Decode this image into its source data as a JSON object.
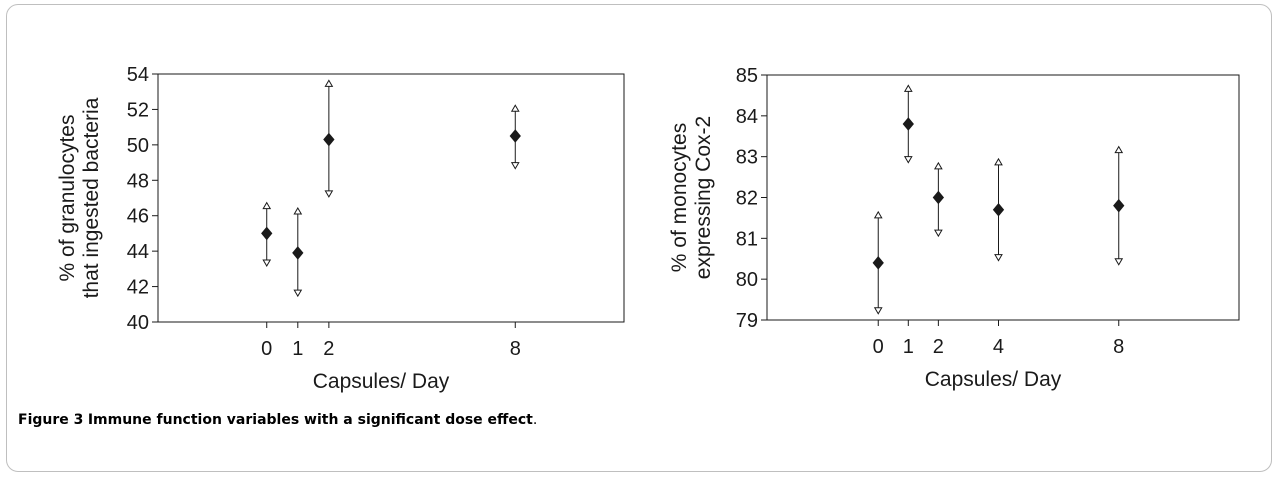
{
  "caption": {
    "label": "Figure 3",
    "text": "Immune function variables with a significant dose effect",
    "suffix": "."
  },
  "chart_data": [
    {
      "type": "scatter",
      "error_bars": true,
      "xlabel": "Capsules/ Day",
      "ylabel": [
        "% of granulocytes",
        "that ingested bacteria"
      ],
      "x": [
        0,
        1,
        2,
        8
      ],
      "xticks": [
        0,
        1,
        2,
        8
      ],
      "ylim": [
        40,
        54
      ],
      "yticks": [
        40,
        42,
        44,
        46,
        48,
        50,
        52,
        54
      ],
      "y": [
        45.0,
        43.9,
        50.3,
        50.5
      ],
      "upper": [
        46.4,
        46.1,
        53.3,
        51.9
      ],
      "lower": [
        43.5,
        41.8,
        47.4,
        49.0
      ],
      "grid": false,
      "marker": "diamond",
      "color": "#1a1a1a"
    },
    {
      "type": "scatter",
      "error_bars": true,
      "xlabel": "Capsules/ Day",
      "ylabel": [
        "% of monocytes",
        "expressing Cox-2"
      ],
      "x": [
        0,
        1,
        2,
        4,
        8
      ],
      "xticks": [
        0,
        1,
        2,
        4,
        8
      ],
      "ylim": [
        79,
        85
      ],
      "yticks": [
        79,
        80,
        81,
        82,
        83,
        84,
        85
      ],
      "y": [
        80.4,
        83.8,
        82.0,
        81.7,
        81.8
      ],
      "upper": [
        81.5,
        84.6,
        82.7,
        82.8,
        83.1
      ],
      "lower": [
        79.3,
        83.0,
        81.2,
        80.6,
        80.5
      ],
      "grid": false,
      "marker": "diamond",
      "color": "#1a1a1a"
    }
  ]
}
